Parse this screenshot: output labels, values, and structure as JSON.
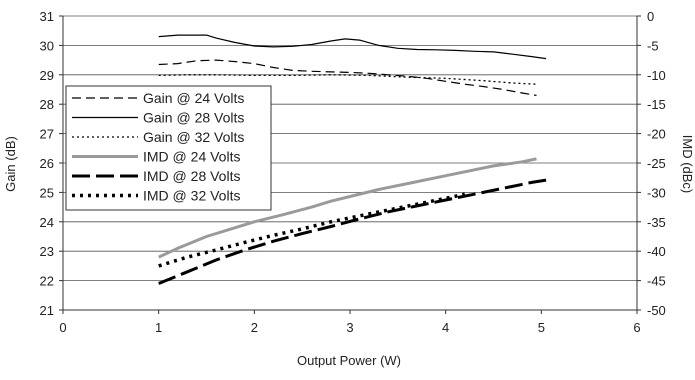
{
  "chart_data": {
    "type": "line",
    "xlabel": "Output Power (W)",
    "ylabel": "Gain (dB)",
    "y2label": "IMD (dBc)",
    "xlim": [
      0,
      6
    ],
    "ylim": [
      21,
      31
    ],
    "y2lim": [
      -50,
      0
    ],
    "x_ticks": [
      "0",
      "1",
      "2",
      "3",
      "4",
      "5",
      "6"
    ],
    "y_ticks": [
      "21",
      "22",
      "23",
      "24",
      "25",
      "26",
      "27",
      "28",
      "29",
      "30",
      "31"
    ],
    "y2_ticks": [
      "-50",
      "-45",
      "-40",
      "-35",
      "-30",
      "-25",
      "-20",
      "-15",
      "-10",
      "-5",
      "0"
    ],
    "grid": "horizontal",
    "legend_position": "left",
    "series": [
      {
        "name": "Gain @ 24 Volts",
        "axis": "left",
        "color": "#000000",
        "style": "dashed-thin",
        "points": [
          [
            1.0,
            29.35
          ],
          [
            1.2,
            29.38
          ],
          [
            1.4,
            29.48
          ],
          [
            1.6,
            29.5
          ],
          [
            1.8,
            29.45
          ],
          [
            2.0,
            29.38
          ],
          [
            2.2,
            29.25
          ],
          [
            2.4,
            29.15
          ],
          [
            2.6,
            29.12
          ],
          [
            2.8,
            29.1
          ],
          [
            3.0,
            29.08
          ],
          [
            3.2,
            29.05
          ],
          [
            3.4,
            29.0
          ],
          [
            3.6,
            28.95
          ],
          [
            3.8,
            28.88
          ],
          [
            4.0,
            28.78
          ],
          [
            4.2,
            28.68
          ],
          [
            4.4,
            28.6
          ],
          [
            4.6,
            28.5
          ],
          [
            4.8,
            28.38
          ],
          [
            4.95,
            28.3
          ]
        ]
      },
      {
        "name": "Gain @ 28 Volts",
        "axis": "left",
        "color": "#000000",
        "style": "solid-thin",
        "points": [
          [
            1.0,
            30.3
          ],
          [
            1.2,
            30.35
          ],
          [
            1.4,
            30.35
          ],
          [
            1.5,
            30.35
          ],
          [
            1.6,
            30.25
          ],
          [
            1.8,
            30.1
          ],
          [
            2.0,
            29.98
          ],
          [
            2.2,
            29.95
          ],
          [
            2.4,
            29.97
          ],
          [
            2.6,
            30.03
          ],
          [
            2.8,
            30.15
          ],
          [
            2.95,
            30.22
          ],
          [
            3.1,
            30.18
          ],
          [
            3.3,
            30.0
          ],
          [
            3.5,
            29.9
          ],
          [
            3.7,
            29.86
          ],
          [
            3.9,
            29.85
          ],
          [
            4.1,
            29.83
          ],
          [
            4.3,
            29.8
          ],
          [
            4.5,
            29.78
          ],
          [
            4.7,
            29.7
          ],
          [
            4.9,
            29.62
          ],
          [
            5.05,
            29.55
          ]
        ]
      },
      {
        "name": "Gain @ 32 Volts",
        "axis": "left",
        "color": "#000000",
        "style": "dotted-thin",
        "points": [
          [
            1.0,
            28.98
          ],
          [
            1.3,
            29.0
          ],
          [
            1.6,
            29.0
          ],
          [
            2.0,
            28.98
          ],
          [
            2.4,
            28.98
          ],
          [
            2.8,
            29.0
          ],
          [
            3.2,
            28.98
          ],
          [
            3.6,
            28.92
          ],
          [
            4.0,
            28.88
          ],
          [
            4.4,
            28.8
          ],
          [
            4.7,
            28.72
          ],
          [
            4.95,
            28.68
          ]
        ]
      },
      {
        "name": "IMD @ 24 Volts",
        "axis": "right",
        "color": "#9a9a9a",
        "style": "solid-thick",
        "points": [
          [
            1.0,
            -41.0
          ],
          [
            1.2,
            -39.5
          ],
          [
            1.5,
            -37.5
          ],
          [
            1.8,
            -36.0
          ],
          [
            2.0,
            -35.0
          ],
          [
            2.3,
            -33.8
          ],
          [
            2.6,
            -32.5
          ],
          [
            2.8,
            -31.5
          ],
          [
            3.0,
            -30.7
          ],
          [
            3.3,
            -29.5
          ],
          [
            3.6,
            -28.5
          ],
          [
            3.9,
            -27.5
          ],
          [
            4.2,
            -26.5
          ],
          [
            4.5,
            -25.5
          ],
          [
            4.8,
            -24.8
          ],
          [
            4.95,
            -24.3
          ]
        ]
      },
      {
        "name": "IMD @ 28 Volts",
        "axis": "right",
        "color": "#000000",
        "style": "long-dash-thick",
        "points": [
          [
            1.0,
            -45.5
          ],
          [
            1.3,
            -43.5
          ],
          [
            1.6,
            -41.5
          ],
          [
            1.9,
            -39.8
          ],
          [
            2.2,
            -38.3
          ],
          [
            2.5,
            -37.0
          ],
          [
            2.8,
            -35.8
          ],
          [
            3.1,
            -34.5
          ],
          [
            3.4,
            -33.3
          ],
          [
            3.7,
            -32.3
          ],
          [
            4.0,
            -31.3
          ],
          [
            4.3,
            -30.3
          ],
          [
            4.6,
            -29.3
          ],
          [
            4.9,
            -28.3
          ],
          [
            5.05,
            -27.9
          ]
        ]
      },
      {
        "name": "IMD @ 32 Volts",
        "axis": "right",
        "color": "#000000",
        "style": "dotted-thick",
        "points": [
          [
            1.0,
            -42.5
          ],
          [
            1.3,
            -41.0
          ],
          [
            1.6,
            -39.8
          ],
          [
            1.9,
            -38.5
          ],
          [
            2.2,
            -37.3
          ],
          [
            2.5,
            -36.2
          ],
          [
            2.8,
            -35.0
          ],
          [
            3.1,
            -34.0
          ],
          [
            3.4,
            -33.0
          ],
          [
            3.7,
            -32.0
          ],
          [
            4.0,
            -31.0
          ],
          [
            4.2,
            -30.3
          ]
        ]
      }
    ]
  }
}
